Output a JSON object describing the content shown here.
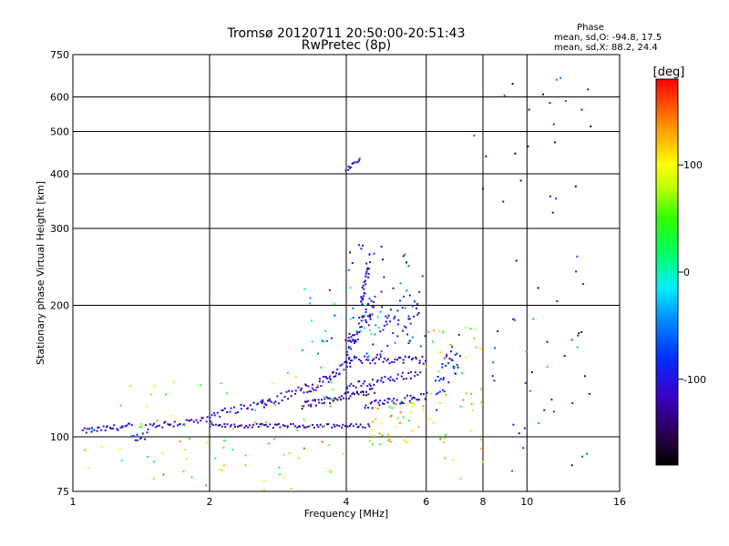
{
  "chart_data": {
    "type": "scatter",
    "title": "Tromsø 20120711 20:50:00-20:51:43",
    "subtitle": "RwPretec (8p)",
    "phase_box": {
      "heading": "Phase",
      "line_o": "mean, sd,O: -94.8, 17.5",
      "line_x": "mean, sd,X:  88.2, 24.4"
    },
    "xlabel": "Frequency [MHz]",
    "ylabel": "Stationary phase Virtual Height [km]",
    "x_scale": "log2",
    "y_scale": "log",
    "xlim": [
      1,
      16
    ],
    "ylim": [
      75,
      750
    ],
    "x_ticks": [
      1,
      2,
      4,
      6,
      8,
      10,
      16
    ],
    "x_tick_labels": [
      "1",
      "2",
      "4",
      "6",
      "8",
      "10",
      "16"
    ],
    "y_ticks": [
      75,
      100,
      200,
      300,
      400,
      500,
      600,
      750
    ],
    "y_tick_labels": [
      "75",
      "100",
      "200",
      "300",
      "400",
      "500",
      "600",
      "750"
    ],
    "grid": true,
    "colorbar": {
      "label": "[deg]",
      "range": [
        -180,
        180
      ],
      "ticks": [
        100,
        0,
        -100
      ],
      "tick_labels": [
        "100",
        "0",
        "-100"
      ]
    },
    "traces": [
      {
        "from": [
          1.05,
          103
        ],
        "to": [
          1.35,
          106
        ],
        "phase": -105,
        "n": 30,
        "jitter": 0.015
      },
      {
        "from": [
          1.35,
          99
        ],
        "to": [
          1.45,
          101
        ],
        "phase": -100,
        "n": 10,
        "jitter": 0.02
      },
      {
        "from": [
          1.45,
          106
        ],
        "to": [
          2.0,
          109
        ],
        "phase": -110,
        "n": 34,
        "jitter": 0.02
      },
      {
        "from": [
          2.0,
          106
        ],
        "to": [
          4.5,
          106
        ],
        "phase": -120,
        "n": 80,
        "jitter": 0.01
      },
      {
        "from": [
          2.0,
          112
        ],
        "to": [
          2.7,
          120
        ],
        "phase": -105,
        "n": 30,
        "jitter": 0.02
      },
      {
        "from": [
          2.6,
          118
        ],
        "to": [
          3.3,
          130
        ],
        "phase": -115,
        "n": 28,
        "jitter": 0.025
      },
      {
        "from": [
          3.2,
          118
        ],
        "to": [
          4.6,
          128
        ],
        "phase": -125,
        "n": 55,
        "jitter": 0.02
      },
      {
        "from": [
          3.3,
          128
        ],
        "to": [
          4.1,
          148
        ],
        "phase": -110,
        "n": 40,
        "jitter": 0.025
      },
      {
        "from": [
          4.0,
          150
        ],
        "to": [
          6.0,
          150
        ],
        "phase": -115,
        "n": 45,
        "jitter": 0.02
      },
      {
        "from": [
          4.0,
          130
        ],
        "to": [
          5.8,
          140
        ],
        "phase": -110,
        "n": 40,
        "jitter": 0.02
      },
      {
        "from": [
          4.4,
          118
        ],
        "to": [
          6.0,
          124
        ],
        "phase": -105,
        "n": 40,
        "jitter": 0.02
      },
      {
        "from": [
          4.0,
          160
        ],
        "to": [
          4.6,
          200
        ],
        "phase": -120,
        "n": 50,
        "jitter": 0.06
      },
      {
        "from": [
          4.3,
          200
        ],
        "to": [
          4.5,
          255
        ],
        "phase": -105,
        "n": 30,
        "jitter": 0.06
      },
      {
        "from": [
          4.0,
          410
        ],
        "to": [
          4.3,
          430
        ],
        "phase": -105,
        "n": 12,
        "jitter": 0.01
      },
      {
        "from": [
          4.7,
          165
        ],
        "to": [
          5.8,
          210
        ],
        "phase": -95,
        "n": 30,
        "jitter": 0.1
      },
      {
        "from": [
          6.3,
          125
        ],
        "to": [
          7.1,
          160
        ],
        "phase": -90,
        "n": 35,
        "jitter": 0.1
      }
    ],
    "scatter_regions": [
      {
        "x": [
          1.05,
          2.0
        ],
        "y": [
          80,
          135
        ],
        "phase": 60,
        "n": 25
      },
      {
        "x": [
          2.0,
          4.0
        ],
        "y": [
          80,
          145
        ],
        "phase": 70,
        "n": 40
      },
      {
        "x": [
          3.2,
          5.0
        ],
        "y": [
          150,
          220
        ],
        "phase": -30,
        "n": 40
      },
      {
        "x": [
          4.5,
          6.0
        ],
        "y": [
          96,
          120
        ],
        "phase": 85,
        "n": 40
      },
      {
        "x": [
          4.0,
          6.0
        ],
        "y": [
          160,
          280
        ],
        "phase": -100,
        "n": 40
      },
      {
        "x": [
          6.0,
          8.0
        ],
        "y": [
          80,
          180
        ],
        "phase": 80,
        "n": 45
      },
      {
        "x": [
          8.0,
          14.0
        ],
        "y": [
          77,
          190
        ],
        "phase": -80,
        "n": 35
      },
      {
        "x": [
          7.5,
          14.0
        ],
        "y": [
          200,
          700
        ],
        "phase": -110,
        "n": 30
      },
      {
        "x": [
          1.5,
          4.0
        ],
        "y": [
          75,
          100
        ],
        "phase": 100,
        "n": 20
      }
    ]
  }
}
